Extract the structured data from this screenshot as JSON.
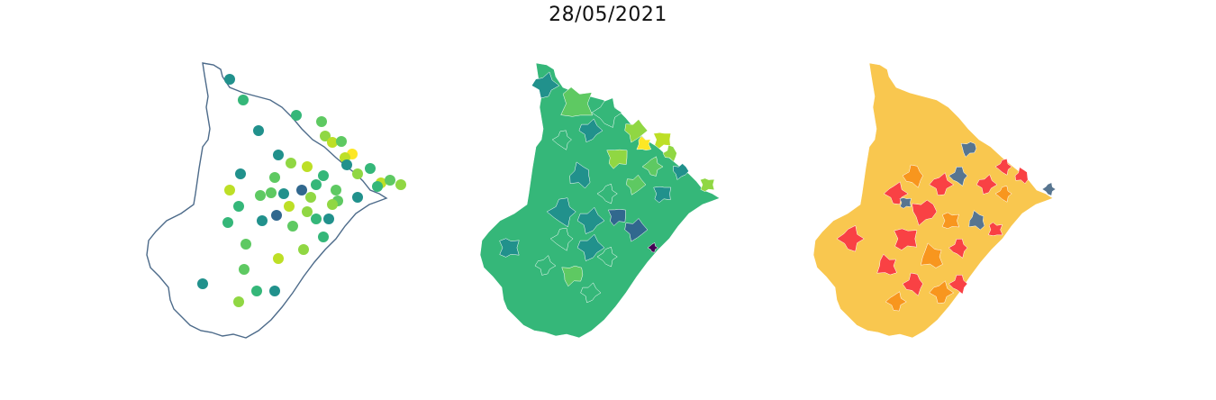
{
  "title": "28/05/2021",
  "colors": {
    "outline": "#4d6b8a",
    "viridis": [
      "#440154",
      "#31688e",
      "#21918c",
      "#35b779",
      "#5ec962",
      "#90d743",
      "#bddf26",
      "#fde725"
    ],
    "categories": {
      "low": "#f9c74f",
      "medium": "#f8961e",
      "high": "#f94144",
      "very_high": "#577590"
    }
  },
  "panels": [
    {
      "name": "station-points",
      "kind": "scatter"
    },
    {
      "name": "municipality-choropleth",
      "kind": "choropleth"
    },
    {
      "name": "municipality-categories",
      "kind": "categorical"
    }
  ],
  "points": [
    {
      "v": 2
    },
    {
      "v": 3
    },
    {
      "v": 2
    },
    {
      "v": 3
    },
    {
      "v": 4
    },
    {
      "v": 2
    },
    {
      "v": 5
    },
    {
      "v": 6
    },
    {
      "v": 4
    },
    {
      "v": 7
    },
    {
      "v": 6
    },
    {
      "v": 2
    },
    {
      "v": 4
    },
    {
      "v": 5
    },
    {
      "v": 6
    },
    {
      "v": 3
    },
    {
      "v": 2
    },
    {
      "v": 5
    },
    {
      "v": 4
    },
    {
      "v": 3
    },
    {
      "v": 6
    },
    {
      "v": 4
    },
    {
      "v": 3
    },
    {
      "v": 5
    },
    {
      "v": 6
    },
    {
      "v": 4
    },
    {
      "v": 2
    },
    {
      "v": 1
    },
    {
      "v": 3
    },
    {
      "v": 4
    },
    {
      "v": 5
    },
    {
      "v": 2
    },
    {
      "v": 3
    },
    {
      "v": 4
    },
    {
      "v": 6
    },
    {
      "v": 5
    },
    {
      "v": 3
    },
    {
      "v": 2
    },
    {
      "v": 1
    },
    {
      "v": 4
    },
    {
      "v": 5
    },
    {
      "v": 3
    },
    {
      "v": 2
    },
    {
      "v": 4
    },
    {
      "v": 6
    },
    {
      "v": 5
    },
    {
      "v": 3
    },
    {
      "v": 2
    },
    {
      "v": 4
    },
    {
      "v": 3
    },
    {
      "v": 2
    },
    {
      "v": 5
    }
  ]
}
